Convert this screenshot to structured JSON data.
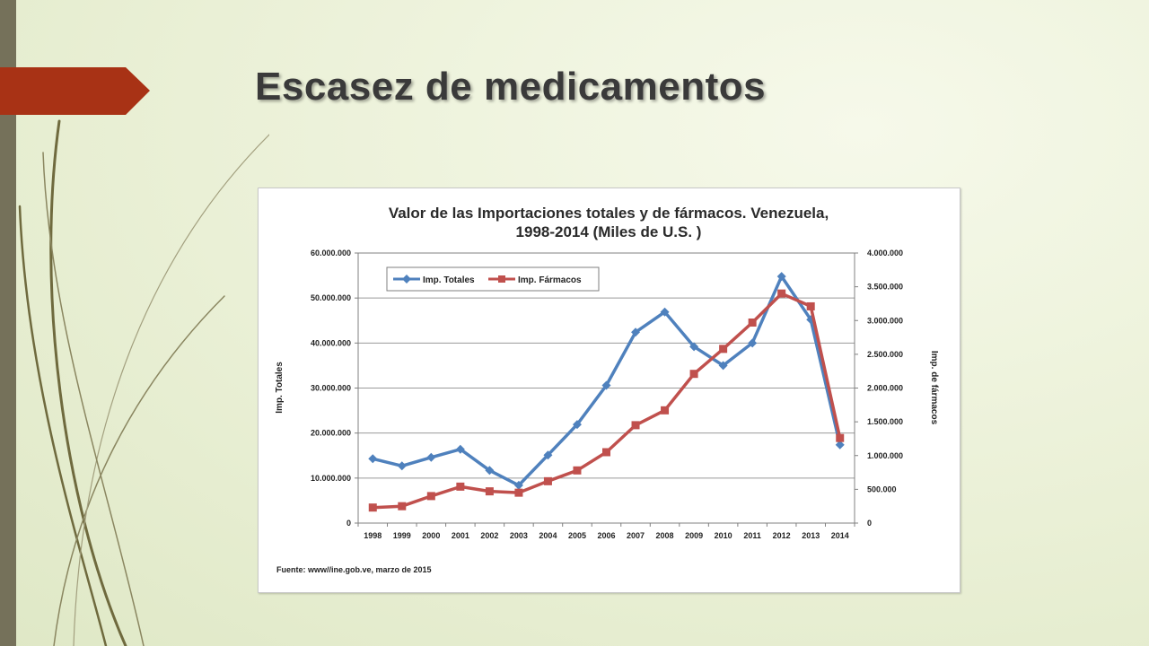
{
  "slide": {
    "title": "Escasez de medicamentos",
    "accent_color": "#a83215",
    "band_color": "#75715a"
  },
  "chart_data": {
    "type": "line",
    "title_lines": [
      "Valor de las Importaciones totales y de fármacos. Venezuela,",
      "1998-2014 (Miles de U.S. )"
    ],
    "x": [
      "1998",
      "1999",
      "2000",
      "2001",
      "2002",
      "2003",
      "2004",
      "2005",
      "2006",
      "2007",
      "2008",
      "2009",
      "2010",
      "2011",
      "2012",
      "2013",
      "2014"
    ],
    "series": [
      {
        "name": "Imp. Totales",
        "axis": "left",
        "color": "#4f81bd",
        "marker": "diamond",
        "values": [
          14300000,
          12700000,
          14600000,
          16400000,
          11700000,
          8400000,
          15100000,
          21900000,
          30600000,
          42400000,
          46900000,
          39200000,
          35000000,
          40000000,
          54800000,
          45200000,
          17400000
        ]
      },
      {
        "name": "Imp. Fármacos",
        "axis": "right",
        "color": "#c0504d",
        "marker": "square",
        "values": [
          230000,
          250000,
          400000,
          540000,
          470000,
          450000,
          620000,
          780000,
          1050000,
          1450000,
          1670000,
          2210000,
          2580000,
          2970000,
          3400000,
          3210000,
          1260000
        ]
      }
    ],
    "y_left": {
      "label": "Imp. Totales",
      "range": [
        0,
        60000000
      ],
      "ticks": [
        "0",
        "10.000.000",
        "20.000.000",
        "30.000.000",
        "40.000.000",
        "50.000.000",
        "60.000.000"
      ]
    },
    "y_right": {
      "label": "Imp. de fármacos",
      "range": [
        0,
        4000000
      ],
      "ticks": [
        "0",
        "500.000",
        "1.000.000",
        "1.500.000",
        "2.000.000",
        "2.500.000",
        "3.000.000",
        "3.500.000",
        "4.000.000"
      ]
    },
    "grid": true,
    "legend_position": "top-left",
    "source_note": "Fuente: www//ine.gob.ve, marzo de 2015"
  }
}
